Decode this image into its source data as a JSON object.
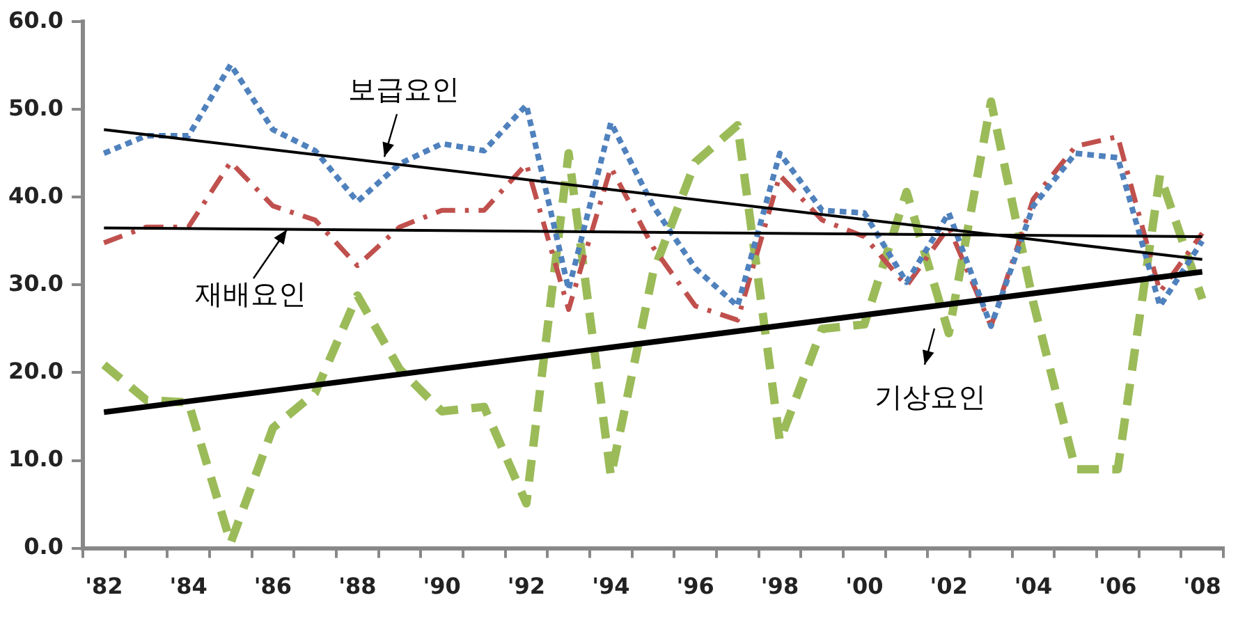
{
  "chart_data": {
    "type": "line",
    "categories": [
      "'82",
      null,
      "'84",
      null,
      "'86",
      null,
      "'88",
      null,
      "'90",
      null,
      "'92",
      null,
      "'94",
      null,
      "'96",
      null,
      "'98",
      null,
      "'00",
      null,
      "'02",
      null,
      "'04",
      null,
      "'06",
      null,
      "'08"
    ],
    "series": [
      {
        "color": "#4f81bd",
        "line_style": "dotted",
        "values": [
          45.0,
          47.0,
          47.0,
          55.1,
          47.7,
          45.3,
          39.5,
          43.8,
          46.1,
          45.3,
          50.5,
          29.5,
          48.5,
          39.0,
          31.9,
          27.6,
          45.0,
          38.5,
          38.2,
          30.3,
          38.2,
          25.3,
          39.0,
          45.0,
          44.5,
          27.6,
          35.0
        ]
      },
      {
        "color": "#c0504d",
        "line_style": "dashed",
        "values": [
          34.8,
          36.6,
          36.6,
          44.0,
          39.0,
          37.4,
          32.2,
          36.6,
          38.5,
          38.5,
          43.8,
          27.2,
          43.4,
          34.3,
          27.6,
          26.0,
          42.5,
          37.4,
          35.5,
          29.9,
          36.6,
          25.3,
          39.8,
          45.8,
          46.9,
          29.2,
          35.9
        ]
      },
      {
        "color": "#9bbb59",
        "line_style": "dashed",
        "values": [
          20.9,
          16.9,
          16.6,
          0.6,
          13.7,
          17.7,
          28.8,
          20.4,
          15.6,
          16.1,
          5.1,
          45.0,
          8.2,
          31.4,
          44.0,
          48.2,
          12.2,
          25.0,
          25.5,
          40.6,
          24.5,
          50.9,
          28.0,
          9.0,
          9.0,
          42.5,
          28.4
        ]
      },
      {
        "type": "line",
        "color": "#000000",
        "line_style": "solid",
        "x": [
          "'82",
          "'08"
        ],
        "values": [
          47.7,
          32.9
        ]
      },
      {
        "type": "line",
        "color": "#000000",
        "line_style": "solid",
        "x": [
          "'82",
          "'08"
        ],
        "values": [
          36.5,
          35.5
        ]
      },
      {
        "type": "line",
        "color": "#000000",
        "line_style": "solid",
        "x": [
          "'82",
          "'08"
        ],
        "values": [
          15.5,
          31.5
        ]
      }
    ],
    "ylim": [
      0,
      60
    ],
    "yticks": [
      {
        "value": 0,
        "label": "0.0"
      },
      {
        "value": 10,
        "label": "10.0"
      },
      {
        "value": 20,
        "label": "20.0"
      },
      {
        "value": 30,
        "label": "30.0"
      },
      {
        "value": 40,
        "label": "40.0"
      },
      {
        "value": 50,
        "label": "50.0"
      },
      {
        "value": 60,
        "label": "60.0"
      }
    ],
    "annotations": [
      {
        "text": "보급요인",
        "y": 44.6
      },
      {
        "text": "재배요인",
        "y": 36.3
      },
      "기상요인"
    ],
    "grid": false,
    "legend": false,
    "marker": "none"
  }
}
